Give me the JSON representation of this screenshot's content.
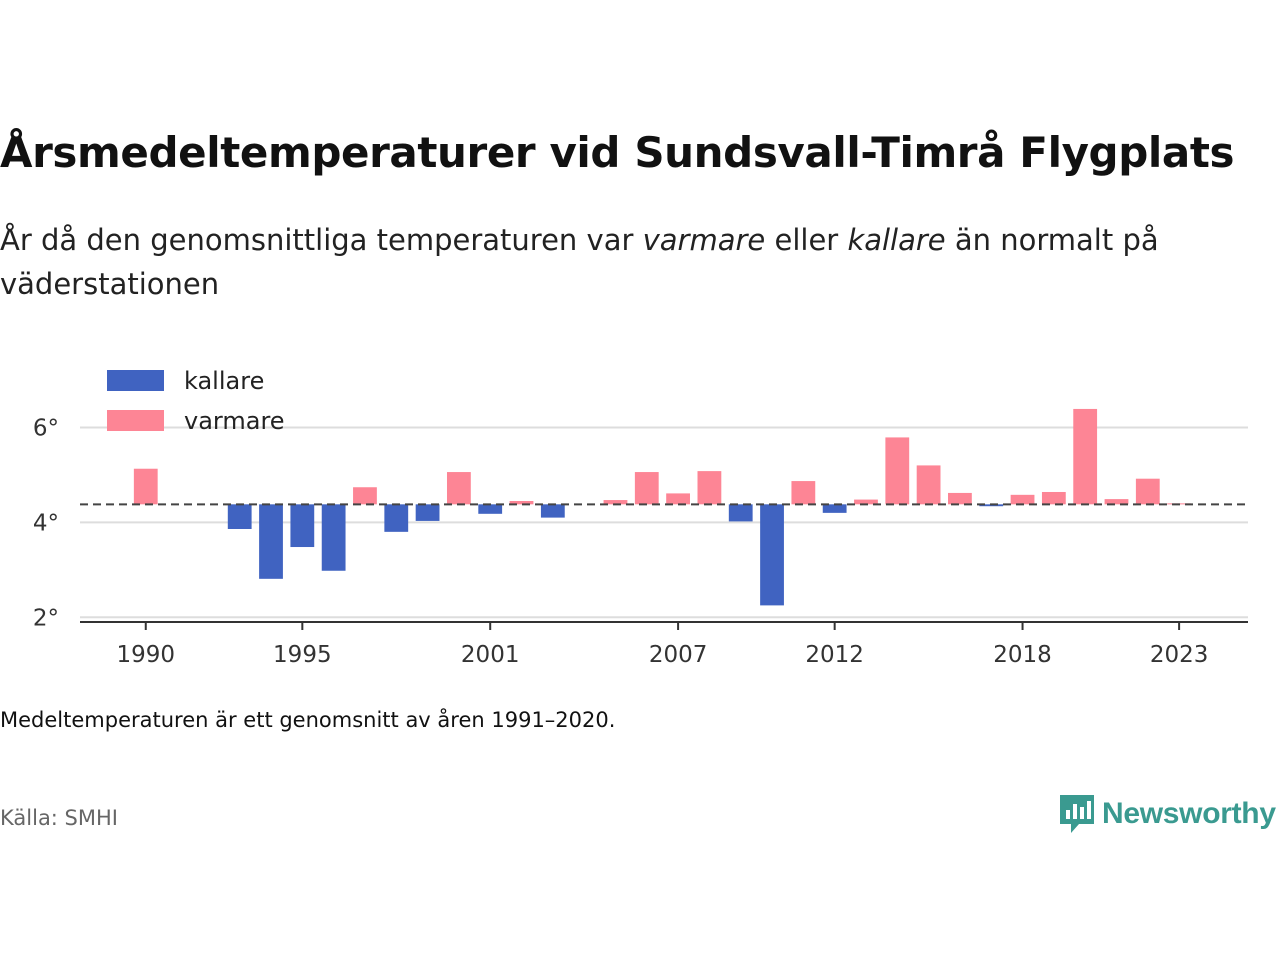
{
  "title": "Årsmedeltemperaturer vid Sundsvall-Timrå Flygplats",
  "subtitle": {
    "before": "År då den genomsnittliga temperaturen var ",
    "warm_word": "varmare",
    "middle": " eller ",
    "cold_word": "kallare",
    "after": " än normalt på väderstationen"
  },
  "note": "Medeltemperaturen är ett genomsnitt av åren 1991–2020.",
  "source": "Källa: SMHI",
  "logo": {
    "text": "Newsworthy",
    "icon": "newsworthy-bar-chart-bubble-icon",
    "color": "#3a9a90"
  },
  "colors": {
    "cold": "#4063c1",
    "warm": "#fd8595",
    "grid": "#dddddd",
    "baseline": "#444444",
    "axis": "#333333"
  },
  "chart_data": {
    "type": "bar",
    "title": "Årsmedeltemperaturer vid Sundsvall-Timrå Flygplats",
    "xlabel": "",
    "ylabel": "",
    "baseline": 4.38,
    "ylim": [
      1.9,
      7.0
    ],
    "xlim": [
      1987.9,
      2025.2
    ],
    "yticks": [
      2,
      4,
      6
    ],
    "ytick_labels": [
      "2°",
      "4°",
      "6°"
    ],
    "xticks": [
      1990,
      1995,
      2001,
      2007,
      2012,
      2018,
      2023
    ],
    "xtick_labels": [
      "1990",
      "1995",
      "2001",
      "2007",
      "2012",
      "2018",
      "2023"
    ],
    "grid": true,
    "legend": [
      {
        "name": "kallare",
        "color": "#4063c1"
      },
      {
        "name": "varmare",
        "color": "#fd8595"
      }
    ],
    "legend_position": "top-left",
    "years": [
      1990,
      1993,
      1994,
      1995,
      1996,
      1997,
      1998,
      1999,
      2000,
      2001,
      2002,
      2003,
      2005,
      2006,
      2007,
      2008,
      2009,
      2010,
      2011,
      2012,
      2013,
      2014,
      2015,
      2016,
      2017,
      2018,
      2019,
      2020,
      2021,
      2022,
      2023
    ],
    "values": [
      5.13,
      3.86,
      2.81,
      3.48,
      2.98,
      4.74,
      3.8,
      4.03,
      5.06,
      4.18,
      4.45,
      4.1,
      4.47,
      5.06,
      4.61,
      5.08,
      4.02,
      2.25,
      4.87,
      4.2,
      4.48,
      5.79,
      5.2,
      4.62,
      4.34,
      4.58,
      4.64,
      6.39,
      4.49,
      4.92,
      4.4
    ]
  }
}
